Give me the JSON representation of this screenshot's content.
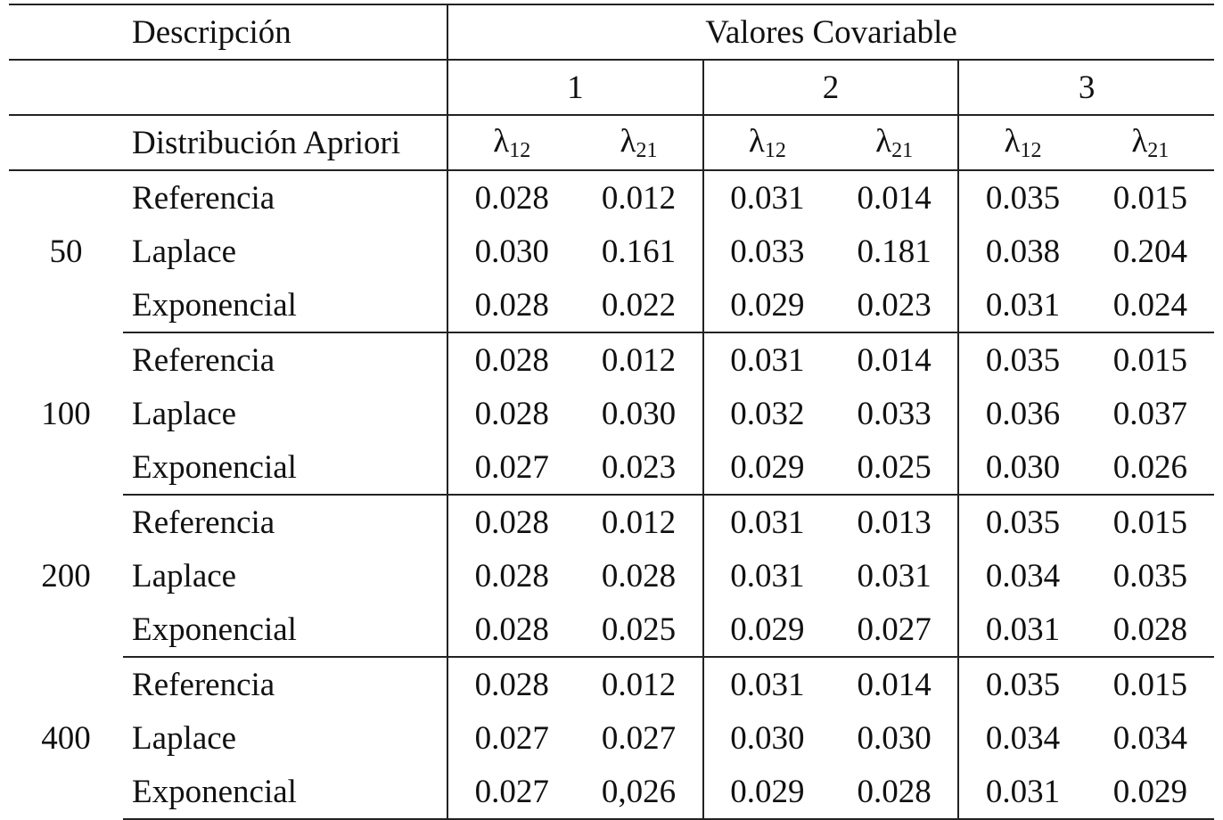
{
  "header": {
    "descripcion": "Descripción",
    "valores": "Valores Covariable",
    "covariates": [
      "1",
      "2",
      "3"
    ],
    "distribucion": "Distribución Apriori",
    "lambda": "λ",
    "sub12": "12",
    "sub21": "21"
  },
  "groups": [
    {
      "n": "50",
      "rows": [
        {
          "prior": "Referencia",
          "values": [
            "0.028",
            "0.012",
            "0.031",
            "0.014",
            "0.035",
            "0.015"
          ]
        },
        {
          "prior": "Laplace",
          "values": [
            "0.030",
            "0.161",
            "0.033",
            "0.181",
            "0.038",
            "0.204"
          ]
        },
        {
          "prior": "Exponencial",
          "values": [
            "0.028",
            "0.022",
            "0.029",
            "0.023",
            "0.031",
            "0.024"
          ]
        }
      ]
    },
    {
      "n": "100",
      "rows": [
        {
          "prior": "Referencia",
          "values": [
            "0.028",
            "0.012",
            "0.031",
            "0.014",
            "0.035",
            "0.015"
          ]
        },
        {
          "prior": "Laplace",
          "values": [
            "0.028",
            "0.030",
            "0.032",
            "0.033",
            "0.036",
            "0.037"
          ]
        },
        {
          "prior": "Exponencial",
          "values": [
            "0.027",
            "0.023",
            "0.029",
            "0.025",
            "0.030",
            "0.026"
          ]
        }
      ]
    },
    {
      "n": "200",
      "rows": [
        {
          "prior": "Referencia",
          "values": [
            "0.028",
            "0.012",
            "0.031",
            "0.013",
            "0.035",
            "0.015"
          ]
        },
        {
          "prior": "Laplace",
          "values": [
            "0.028",
            "0.028",
            "0.031",
            "0.031",
            "0.034",
            "0.035"
          ]
        },
        {
          "prior": "Exponencial",
          "values": [
            "0.028",
            "0.025",
            "0.029",
            "0.027",
            "0.031",
            "0.028"
          ]
        }
      ]
    },
    {
      "n": "400",
      "rows": [
        {
          "prior": "Referencia",
          "values": [
            "0.028",
            "0.012",
            "0.031",
            "0.014",
            "0.035",
            "0.015"
          ]
        },
        {
          "prior": "Laplace",
          "values": [
            "0.027",
            "0.027",
            "0.030",
            "0.030",
            "0.034",
            "0.034"
          ]
        },
        {
          "prior": "Exponencial",
          "values": [
            "0.027",
            "0,026",
            "0.029",
            "0.028",
            "0.031",
            "0.029"
          ]
        }
      ]
    }
  ]
}
